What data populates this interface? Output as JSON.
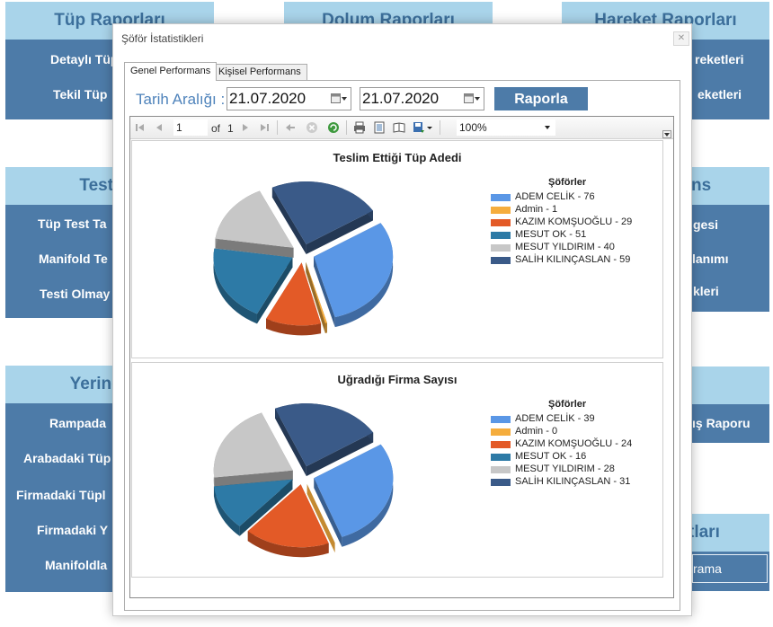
{
  "background": {
    "panels": [
      {
        "title": "Tüp Raporları",
        "items": [
          "Detaylı Tüp",
          "Tekil Tüp"
        ]
      },
      {
        "title": "Dolum Raporları",
        "items": []
      },
      {
        "title": "Hareket Raporları",
        "items": [
          "reketleri",
          "eketleri"
        ]
      },
      {
        "title": "Test Ra",
        "items": [
          "Tüp Test Ta",
          "Manifold Te",
          "Testi Olmay"
        ]
      },
      {
        "title": "ns",
        "items": [
          "gesi",
          "lanımı",
          "kleri"
        ]
      },
      {
        "title": "Yerine Gö",
        "items": [
          "Rampada",
          "Arabadaki Tüp",
          "Firmadaki Tüpl",
          "Firmadaki Y",
          "Manifoldla"
        ]
      },
      {
        "title": "",
        "items": [
          "ış Raporu"
        ]
      },
      {
        "title": "tları",
        "items": [
          "rama"
        ]
      }
    ]
  },
  "dialog": {
    "title": "Şöför İstatistikleri",
    "tabs": [
      {
        "label": "Genel Performans",
        "active": true
      },
      {
        "label": "Kişisel Performans",
        "active": false
      }
    ],
    "date_label": "Tarih Aralığı :",
    "date_start": "21.07.2020",
    "date_end": "21.07.2020",
    "report_button": "Raporla"
  },
  "viewer": {
    "page_current": "1",
    "page_of": "of",
    "page_total": "1",
    "zoom": "100%"
  },
  "colors": {
    "ADEM CELİK": "#5a97e6",
    "Admin": "#f5ad3d",
    "KAZIM KOMŞUOĞLU": "#e35a27",
    "MESUT OK": "#2d7aa6",
    "MESUT YILDIRIM": "#c7c7c7",
    "SALİH KILINÇASLAN": "#3a5a88"
  },
  "chart_data": [
    {
      "type": "pie",
      "title": "Teslim Ettiği Tüp Adedi",
      "legend_title": "Şöförler",
      "legend_position": "right",
      "labels": [
        "ADEM CELİK - 76",
        "Admin - 1",
        "KAZIM KOMŞUOĞLU - 29",
        "MESUT OK - 51",
        "MESUT YILDIRIM - 40",
        "SALİH KILINÇASLAN - 59"
      ],
      "categories": [
        "ADEM CELİK",
        "Admin",
        "KAZIM KOMŞUOĞLU",
        "MESUT OK",
        "MESUT YILDIRIM",
        "SALİH KILINÇASLAN"
      ],
      "values": [
        76,
        1,
        29,
        51,
        40,
        59
      ]
    },
    {
      "type": "pie",
      "title": "Uğradığı Firma Sayısı",
      "legend_title": "Şöförler",
      "legend_position": "right",
      "labels": [
        "ADEM CELİK - 39",
        "Admin - 0",
        "KAZIM KOMŞUOĞLU - 24",
        "MESUT OK - 16",
        "MESUT YILDIRIM - 28",
        "SALİH KILINÇASLAN - 31"
      ],
      "categories": [
        "ADEM CELİK",
        "Admin",
        "KAZIM KOMŞUOĞLU",
        "MESUT OK",
        "MESUT YILDIRIM",
        "SALİH KILINÇASLAN"
      ],
      "values": [
        39,
        0,
        24,
        16,
        28,
        31
      ]
    }
  ]
}
